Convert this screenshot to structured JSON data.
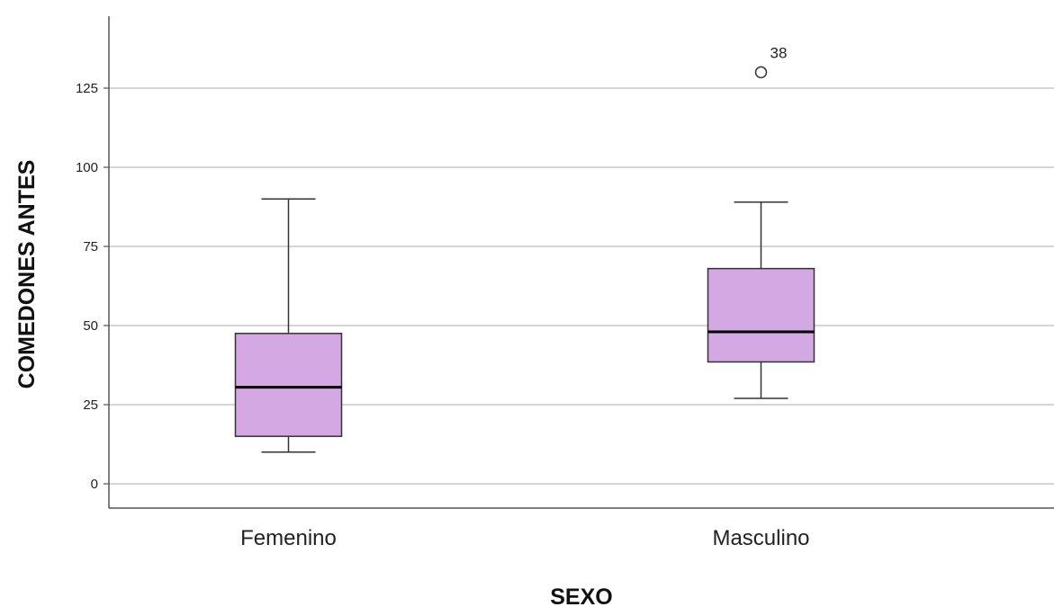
{
  "chart_data": {
    "type": "boxplot",
    "xlabel": "SEXO",
    "ylabel": "COMEDONES ANTES",
    "ylim": [
      -8,
      147
    ],
    "yticks": [
      0,
      25,
      50,
      75,
      100,
      125
    ],
    "grid": true,
    "box_color": "#d3a8e3",
    "categories": [
      "Femenino",
      "Masculino"
    ],
    "boxes": [
      {
        "name": "Femenino",
        "whisker_low": 10,
        "q1": 15,
        "median": 30.5,
        "q3": 47.5,
        "whisker_high": 90,
        "outliers": []
      },
      {
        "name": "Masculino",
        "whisker_low": 27,
        "q1": 38.5,
        "median": 48,
        "q3": 68,
        "whisker_high": 89,
        "outliers": [
          {
            "value": 130,
            "label": "38"
          }
        ]
      }
    ]
  }
}
